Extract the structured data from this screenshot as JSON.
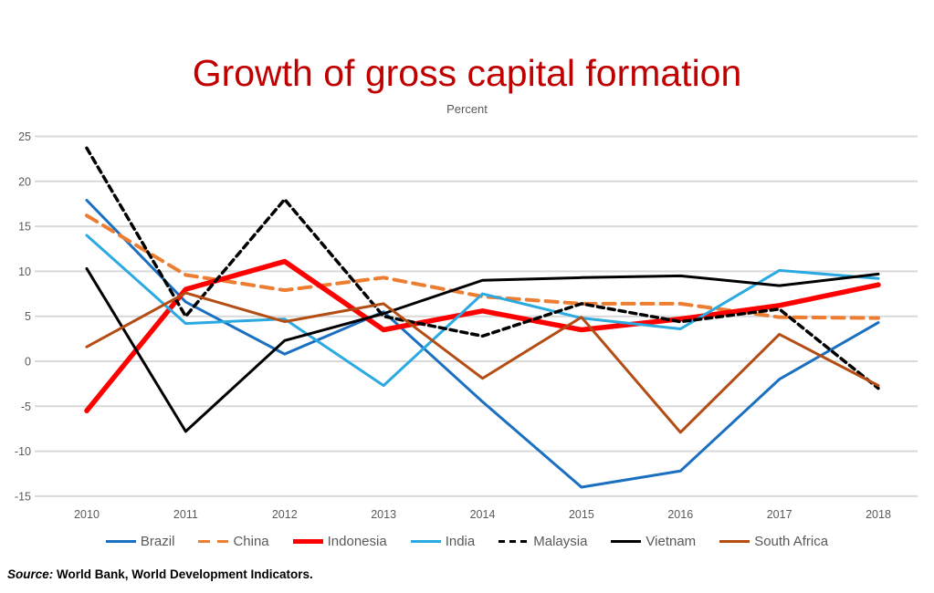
{
  "chart_data": {
    "type": "line",
    "title": "Growth of gross capital formation",
    "title_color": "#C00000",
    "subtitle": "Percent",
    "axis_text_color": "#595959",
    "gridline_color": "#D9D9D9",
    "x": [
      "2010",
      "2011",
      "2012",
      "2013",
      "2014",
      "2015",
      "2016",
      "2017",
      "2018"
    ],
    "ylim": [
      -15,
      25
    ],
    "ytick_step": 5,
    "grid": "horizontal",
    "legend_position": "bottom",
    "series": [
      {
        "name": "Brazil",
        "color": "#1B6FC0",
        "width": 3,
        "dash": "",
        "values": [
          17.9,
          6.6,
          0.8,
          5.5,
          -4.5,
          -14.0,
          -12.2,
          -2.0,
          4.3
        ]
      },
      {
        "name": "China",
        "color": "#ED7D31",
        "width": 4,
        "dash": "13,8",
        "values": [
          16.2,
          9.6,
          7.9,
          9.3,
          7.2,
          6.4,
          6.4,
          4.9,
          4.8
        ]
      },
      {
        "name": "Indonesia",
        "color": "#FF0000",
        "width": 5.5,
        "dash": "",
        "values": [
          -5.5,
          8.0,
          11.1,
          3.5,
          5.6,
          3.5,
          4.7,
          6.2,
          8.5
        ]
      },
      {
        "name": "India",
        "color": "#2BA9E1",
        "width": 3,
        "dash": "",
        "values": [
          14.0,
          4.2,
          4.7,
          -2.7,
          7.5,
          4.8,
          3.6,
          10.1,
          9.2
        ]
      },
      {
        "name": "Malaysia",
        "color": "#000000",
        "width": 3.5,
        "dash": "7,5",
        "values": [
          23.7,
          5.0,
          18.0,
          5.0,
          2.8,
          6.4,
          4.4,
          5.8,
          -3.0
        ]
      },
      {
        "name": "Vietnam",
        "color": "#000000",
        "width": 3,
        "dash": "",
        "values": [
          10.3,
          -7.8,
          2.3,
          5.3,
          9.0,
          9.3,
          9.5,
          8.4,
          9.7
        ]
      },
      {
        "name": "South Africa",
        "color": "#B34D14",
        "width": 3,
        "dash": "",
        "values": [
          1.6,
          7.6,
          4.4,
          6.4,
          -1.9,
          4.9,
          -7.9,
          3.0,
          -2.7
        ]
      }
    ],
    "source_prefix": "Source:",
    "source_text": " World Bank, World Development Indicators."
  }
}
